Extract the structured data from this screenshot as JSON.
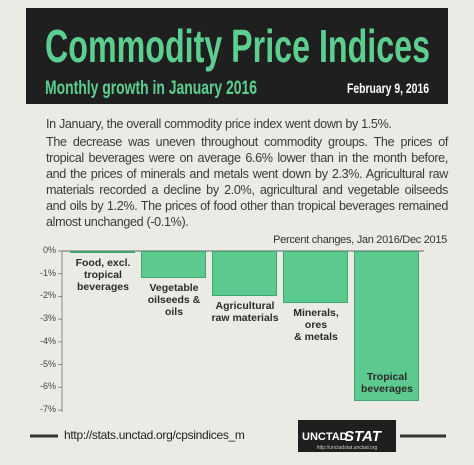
{
  "chart_data": {
    "type": "bar",
    "title": "Commodity Price Indices",
    "subtitle": "Monthly growth in January 2016",
    "date": "February 9, 2016",
    "paragraphs": [
      "In January, the overall commodity price index went down by 1.5%.",
      "The decrease was uneven throughout commodity groups. The prices of tropical beverages were on average 6.6% lower than in the month before, and the prices of minerals and metals went down by 2.3%. Agricultural raw materials recorded a decline by 2.0%, agricultural and vegetable oilseeds and oils by 1.2%. The prices of food other than tropical beverages remained almost unchanged (-0.1%)."
    ],
    "note": "Percent changes, Jan 2016/Dec 2015",
    "categories": [
      "Food, excl.\ntropical\nbeverages",
      "Vegetable\noilseeds & oils",
      "Agricultural\nraw materials",
      "Minerals, ores\n& metals",
      "Tropical\nbeverages"
    ],
    "values": [
      -0.1,
      -1.2,
      -2.0,
      -2.3,
      -6.6
    ],
    "color": "#5cc98e",
    "ylim": [
      -7,
      0
    ],
    "yticks": [
      {
        "value": 0,
        "label": "0%"
      },
      {
        "value": -1,
        "label": "-1%"
      },
      {
        "value": -2,
        "label": "-2%"
      },
      {
        "value": -3,
        "label": "-3%"
      },
      {
        "value": -4,
        "label": "-4%"
      },
      {
        "value": -5,
        "label": "-5%"
      },
      {
        "value": -6,
        "label": "-6%"
      },
      {
        "value": -7,
        "label": "-7%"
      }
    ],
    "footer": {
      "url": "http://stats.unctad.org/cpsindices_m",
      "logo_left": "UNCTAD",
      "logo_right": "STAT",
      "logo_url": "http://unctadstat.unctad.org"
    }
  }
}
